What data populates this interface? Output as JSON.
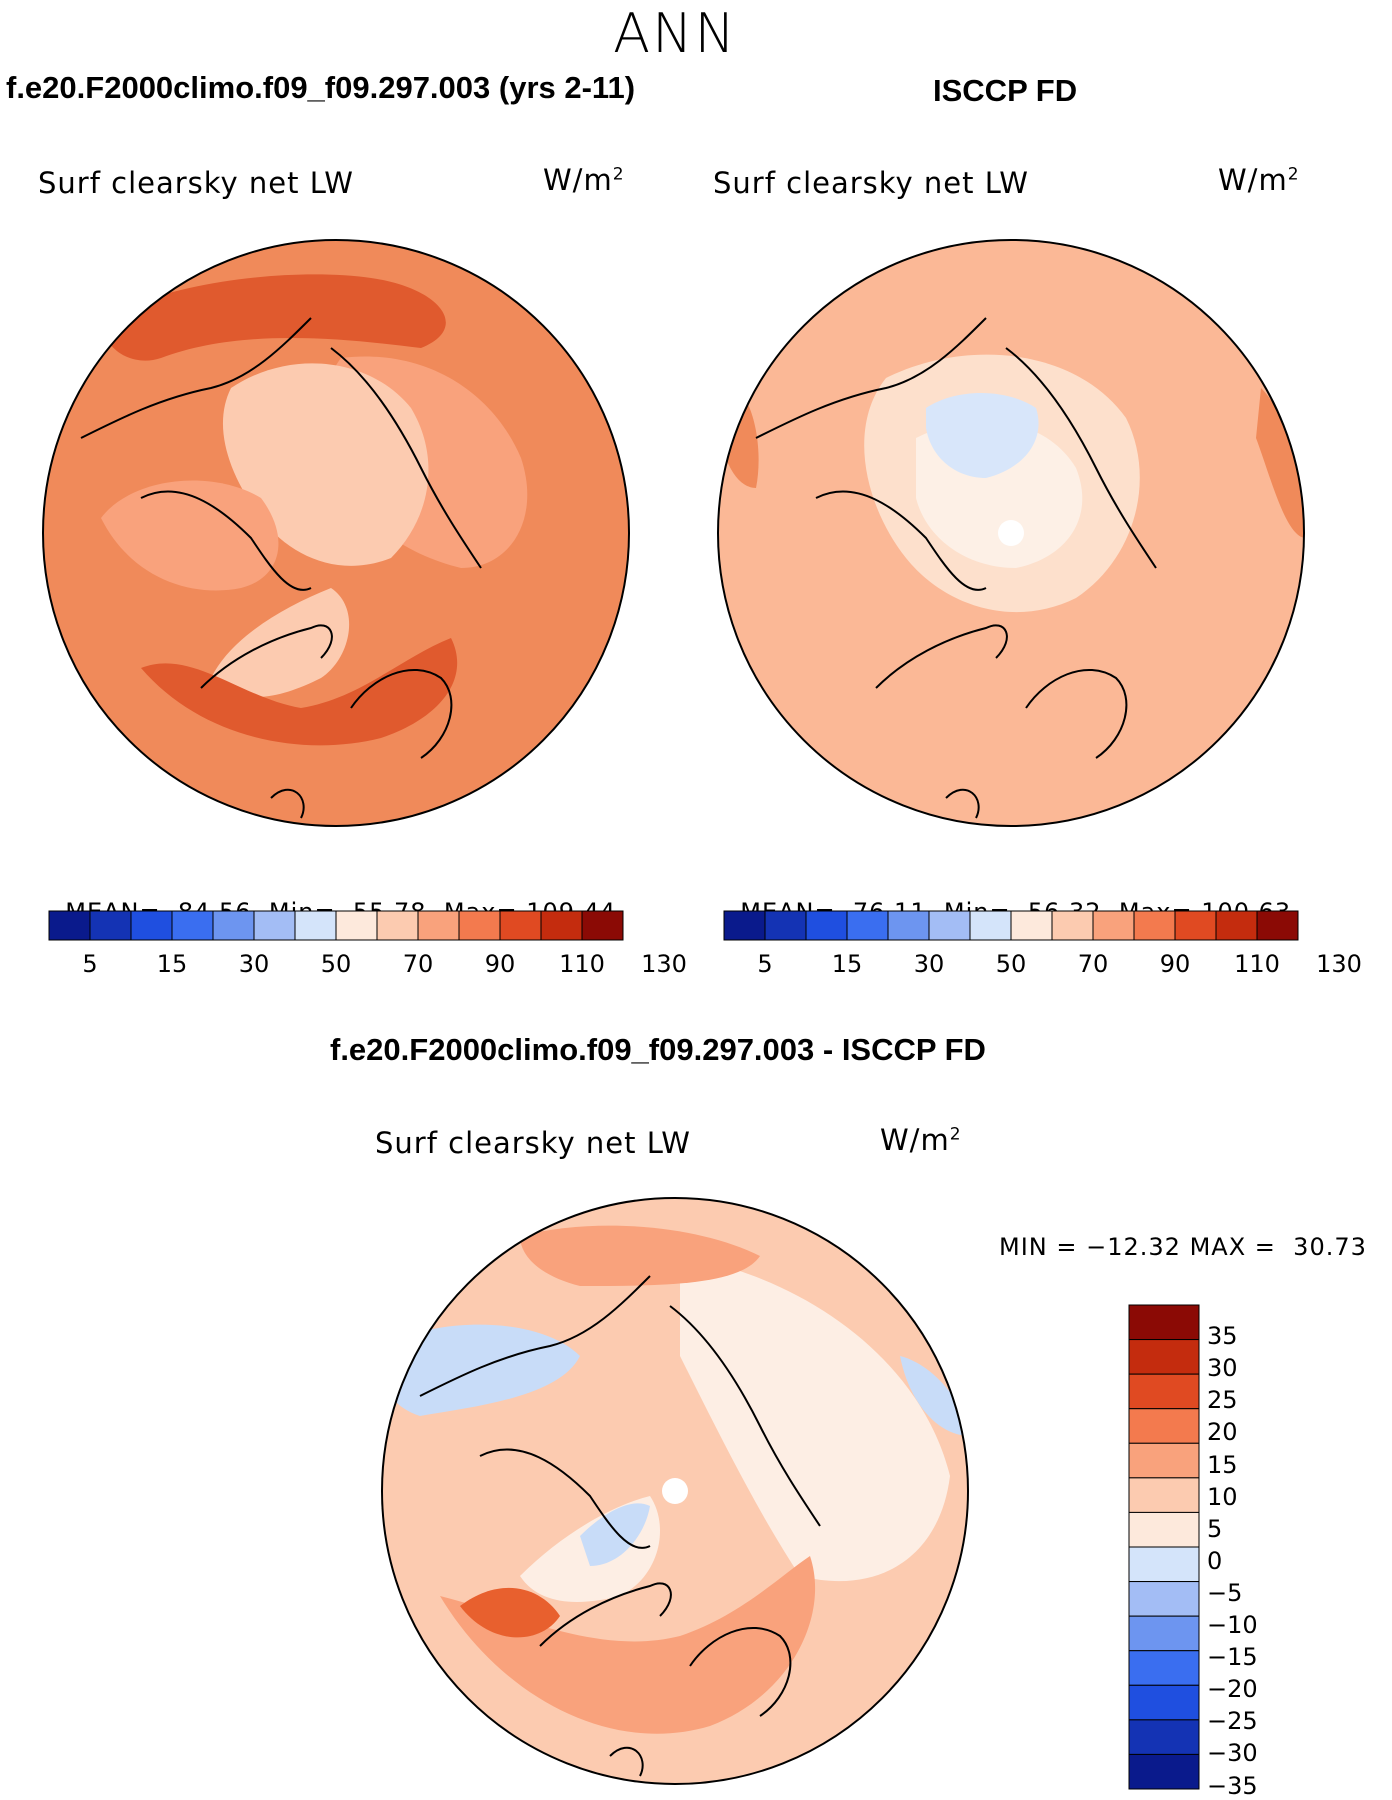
{
  "season": "ANN",
  "panels": [
    {
      "id": "model",
      "title": "f.e20.F2000climo.f09_f09.297.003 (yrs 2-11)",
      "variable": "Surf clearsky net LW",
      "units_base": "W/m",
      "units_sup": "2",
      "stats": {
        "mean_label": "MEAN=",
        "mean": "84.56",
        "min_label": "Min=",
        "min": "55.78",
        "max_label": "Max=",
        "max": "109.44"
      }
    },
    {
      "id": "obs",
      "title": "ISCCP FD",
      "variable": "Surf clearsky net LW",
      "units_base": "W/m",
      "units_sup": "2",
      "stats": {
        "mean_label": "MEAN=",
        "mean": "76.11",
        "min_label": "Min=",
        "min": "56.32",
        "max_label": "Max=",
        "max": "100.63"
      }
    }
  ],
  "diff_panel": {
    "title": "f.e20.F2000climo.f09_f09.297.003 - ISCCP FD",
    "variable": "Surf clearsky net LW",
    "units_base": "W/m",
    "units_sup": "2",
    "minmax": {
      "min_label": "MIN =",
      "min": "−12.32",
      "max_label": "MAX =",
      "max": "30.73"
    }
  },
  "colorbar_abs": {
    "colors": [
      "#0a1a8c",
      "#1433b4",
      "#1f4fe0",
      "#3a6ef0",
      "#6d95f0",
      "#a3bdf5",
      "#d4e4fa",
      "#fde9dc",
      "#fccbb0",
      "#f9a27c",
      "#f37a4e",
      "#e04a22",
      "#c42c0e",
      "#8b0a05"
    ],
    "tick_labels": [
      "5",
      "15",
      "30",
      "50",
      "70",
      "90",
      "110",
      "130"
    ]
  },
  "colorbar_diff": {
    "colors": [
      "#8b0a05",
      "#c42c0e",
      "#e04a22",
      "#f37a4e",
      "#f9a27c",
      "#fccbb0",
      "#fde9dc",
      "#d4e4fa",
      "#a3bdf5",
      "#6d95f0",
      "#3a6ef0",
      "#1f4fe0",
      "#1433b4",
      "#0a1a8c"
    ],
    "tick_labels": [
      "35",
      "30",
      "25",
      "20",
      "15",
      "10",
      "5",
      "0",
      "−5",
      "−10",
      "−15",
      "−20",
      "−25",
      "−30",
      "−35"
    ]
  },
  "map_colors": {
    "model_base": "#f08a5a",
    "model_mid": "#f9a27c",
    "model_light": "#fccbb0",
    "model_pale": "#fde9dc",
    "model_dark": "#e05a2e",
    "obs_base": "#fbb896",
    "obs_light": "#fde0cc",
    "obs_pale": "#fdf0e6",
    "obs_blue": "#d8e6fa",
    "obs_dark": "#f08a5a",
    "diff_base": "#fccbb0",
    "diff_pale": "#fdeee4",
    "diff_blue": "#c8dcf8",
    "diff_mid": "#f9a27c",
    "diff_dark": "#e8602e",
    "coast": "#000000"
  }
}
